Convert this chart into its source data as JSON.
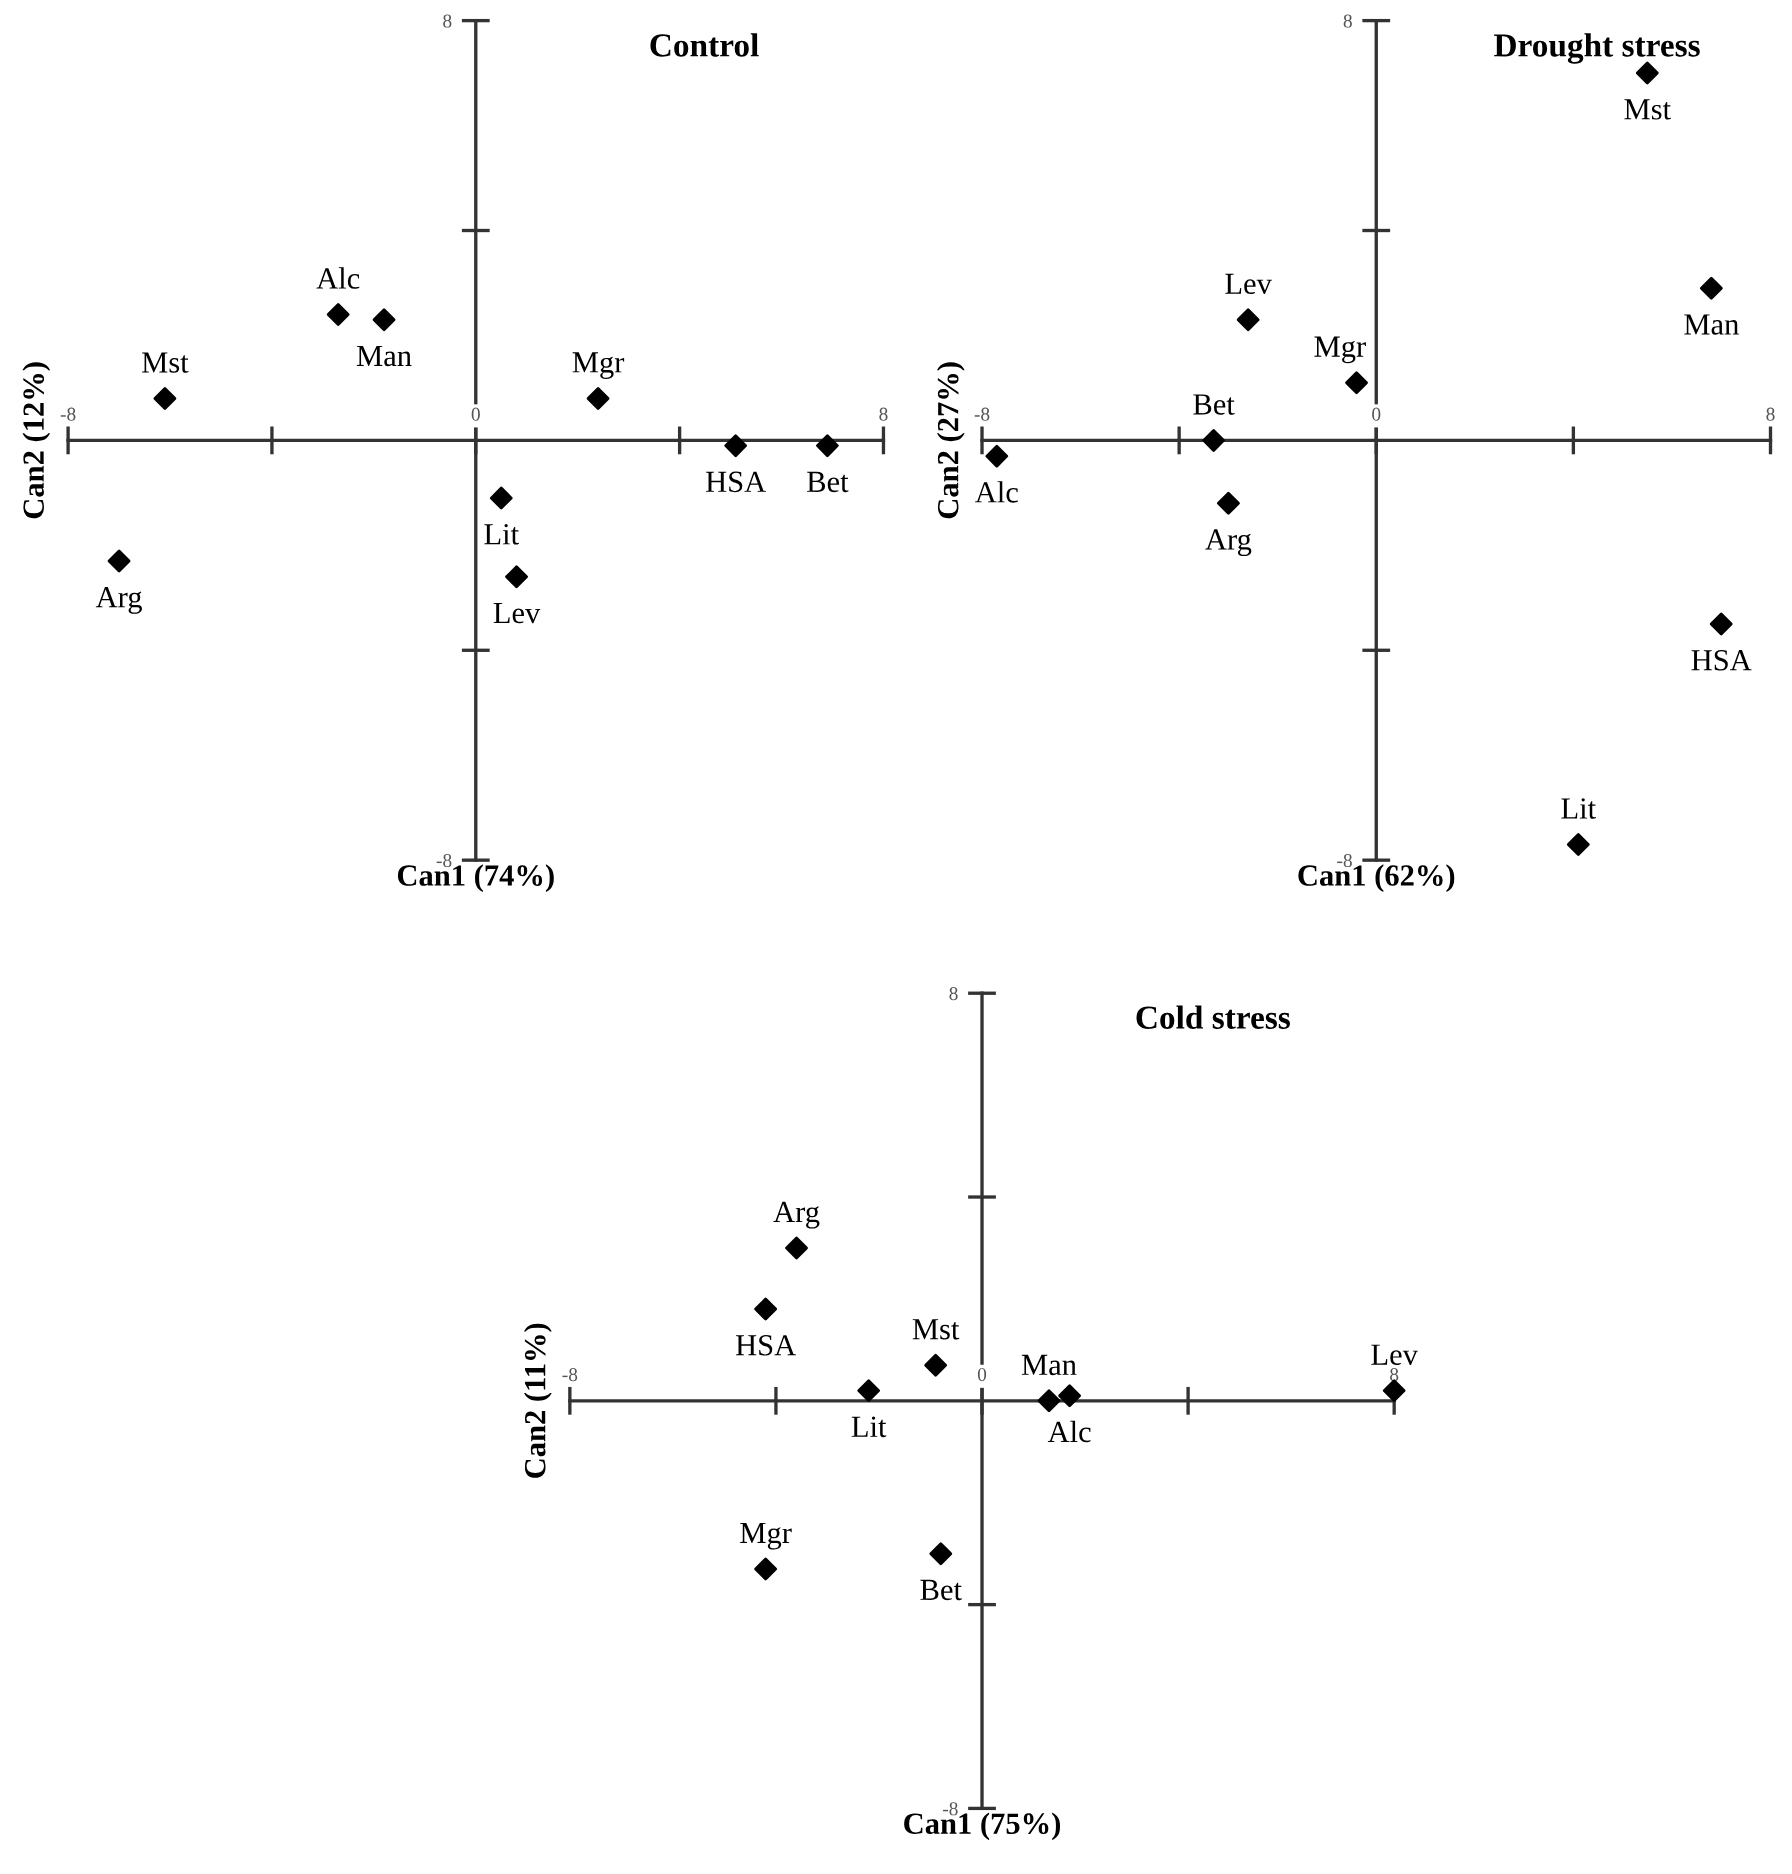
{
  "chart_data": [
    {
      "type": "scatter",
      "title": "Control",
      "xlabel": "Can1 (74%)",
      "ylabel": "Can2 (12%)",
      "marker": "diamond",
      "color": "#000000",
      "grid": false,
      "legend": false,
      "x": [
        -6.1,
        -2.7,
        -1.8,
        2.4,
        5.1,
        6.9,
        0.5,
        0.8,
        -7.0
      ],
      "values": [
        0.8,
        2.4,
        2.3,
        0.8,
        -0.1,
        -0.1,
        -1.1,
        -2.6,
        -2.3
      ],
      "value_labels": [
        "Mst",
        "Alc",
        "Man",
        "Mgr",
        "HSA",
        "Bet",
        "Lit",
        "Lev",
        "Arg"
      ],
      "xlim": [
        -8,
        8
      ],
      "ylim": [
        -8,
        8
      ],
      "xticks": [
        {
          "value": -8,
          "label": "-8"
        },
        {
          "value": -4,
          "label": null
        },
        {
          "value": 0,
          "label": "0"
        },
        {
          "value": 4,
          "label": null
        },
        {
          "value": 8,
          "label": "8"
        }
      ],
      "yticks": [
        {
          "value": -8,
          "label": "-8"
        },
        {
          "value": -4,
          "label": null
        },
        {
          "value": 4,
          "label": null
        },
        {
          "value": 8,
          "label": "8"
        }
      ]
    },
    {
      "type": "scatter",
      "title": "Drought stress",
      "xlabel": "Can1 (62%)",
      "ylabel": "Can2 (27%)",
      "marker": "diamond",
      "color": "#000000",
      "grid": false,
      "legend": false,
      "x": [
        5.5,
        6.8,
        7.0,
        4.1,
        -2.6,
        -0.4,
        -3.3,
        -3.0,
        -7.7
      ],
      "values": [
        7.0,
        2.9,
        -3.5,
        -7.7,
        2.3,
        1.1,
        0.0,
        -1.2,
        -0.3
      ],
      "value_labels": [
        "Mst",
        "Man",
        "HSA",
        "Lit",
        "Lev",
        "Mgr",
        "Bet",
        "Arg",
        "Alc"
      ],
      "xlim": [
        -8,
        8
      ],
      "ylim": [
        -8,
        8
      ],
      "xticks": [
        {
          "value": -8,
          "label": "-8"
        },
        {
          "value": -4,
          "label": null
        },
        {
          "value": 0,
          "label": "0"
        },
        {
          "value": 4,
          "label": null
        },
        {
          "value": 8,
          "label": "8"
        }
      ],
      "yticks": [
        {
          "value": -8,
          "label": "-8"
        },
        {
          "value": -4,
          "label": null
        },
        {
          "value": 4,
          "label": null
        },
        {
          "value": 8,
          "label": "8"
        }
      ]
    },
    {
      "type": "scatter",
      "title": "Cold stress",
      "xlabel": "Can1 (75%)",
      "ylabel": "Can2 (11%)",
      "marker": "diamond",
      "color": "#000000",
      "grid": false,
      "legend": false,
      "x": [
        -3.6,
        -4.2,
        -0.9,
        -2.2,
        1.3,
        1.7,
        8.0,
        -4.2,
        -0.8
      ],
      "values": [
        3.0,
        1.8,
        0.7,
        0.2,
        0.0,
        0.1,
        0.2,
        -3.3,
        -3.0
      ],
      "value_labels": [
        "Arg",
        "HSA",
        "Mst",
        "Lit",
        "Man",
        "Alc",
        "Lev",
        "Mgr",
        "Bet"
      ],
      "xlim": [
        -8,
        8
      ],
      "ylim": [
        -8,
        8
      ],
      "xticks": [
        {
          "value": -8,
          "label": "-8"
        },
        {
          "value": -4,
          "label": null
        },
        {
          "value": 0,
          "label": "0"
        },
        {
          "value": 4,
          "label": null
        },
        {
          "value": 8,
          "label": "8"
        }
      ],
      "yticks": [
        {
          "value": -8,
          "label": "-8"
        },
        {
          "value": -4,
          "label": null
        },
        {
          "value": 4,
          "label": null
        },
        {
          "value": 8,
          "label": "8"
        }
      ]
    }
  ]
}
